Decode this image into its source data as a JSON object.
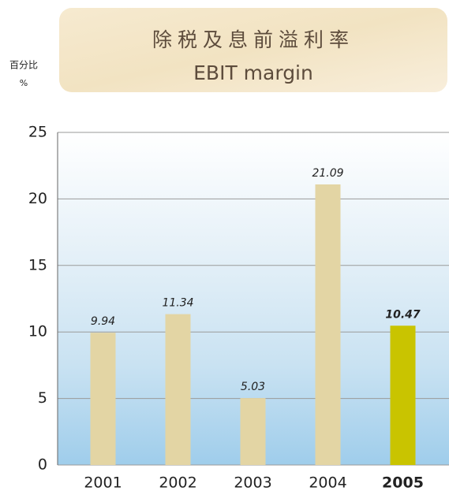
{
  "chart_data": {
    "type": "bar",
    "title": "除税及息前溢利率",
    "subtitle": "EBIT margin",
    "y_axis_label": "百分比",
    "y_axis_unit": "%",
    "categories": [
      "2001",
      "2002",
      "2003",
      "2004",
      "2005"
    ],
    "values": [
      9.94,
      11.34,
      5.03,
      21.09,
      10.47
    ],
    "color": "#e3d5a4",
    "highlight_category": "2005",
    "highlight_color": "#c9c400",
    "ylim": [
      0,
      25
    ],
    "yticks": [
      0,
      5,
      10,
      15,
      20,
      25
    ],
    "grid": true
  }
}
